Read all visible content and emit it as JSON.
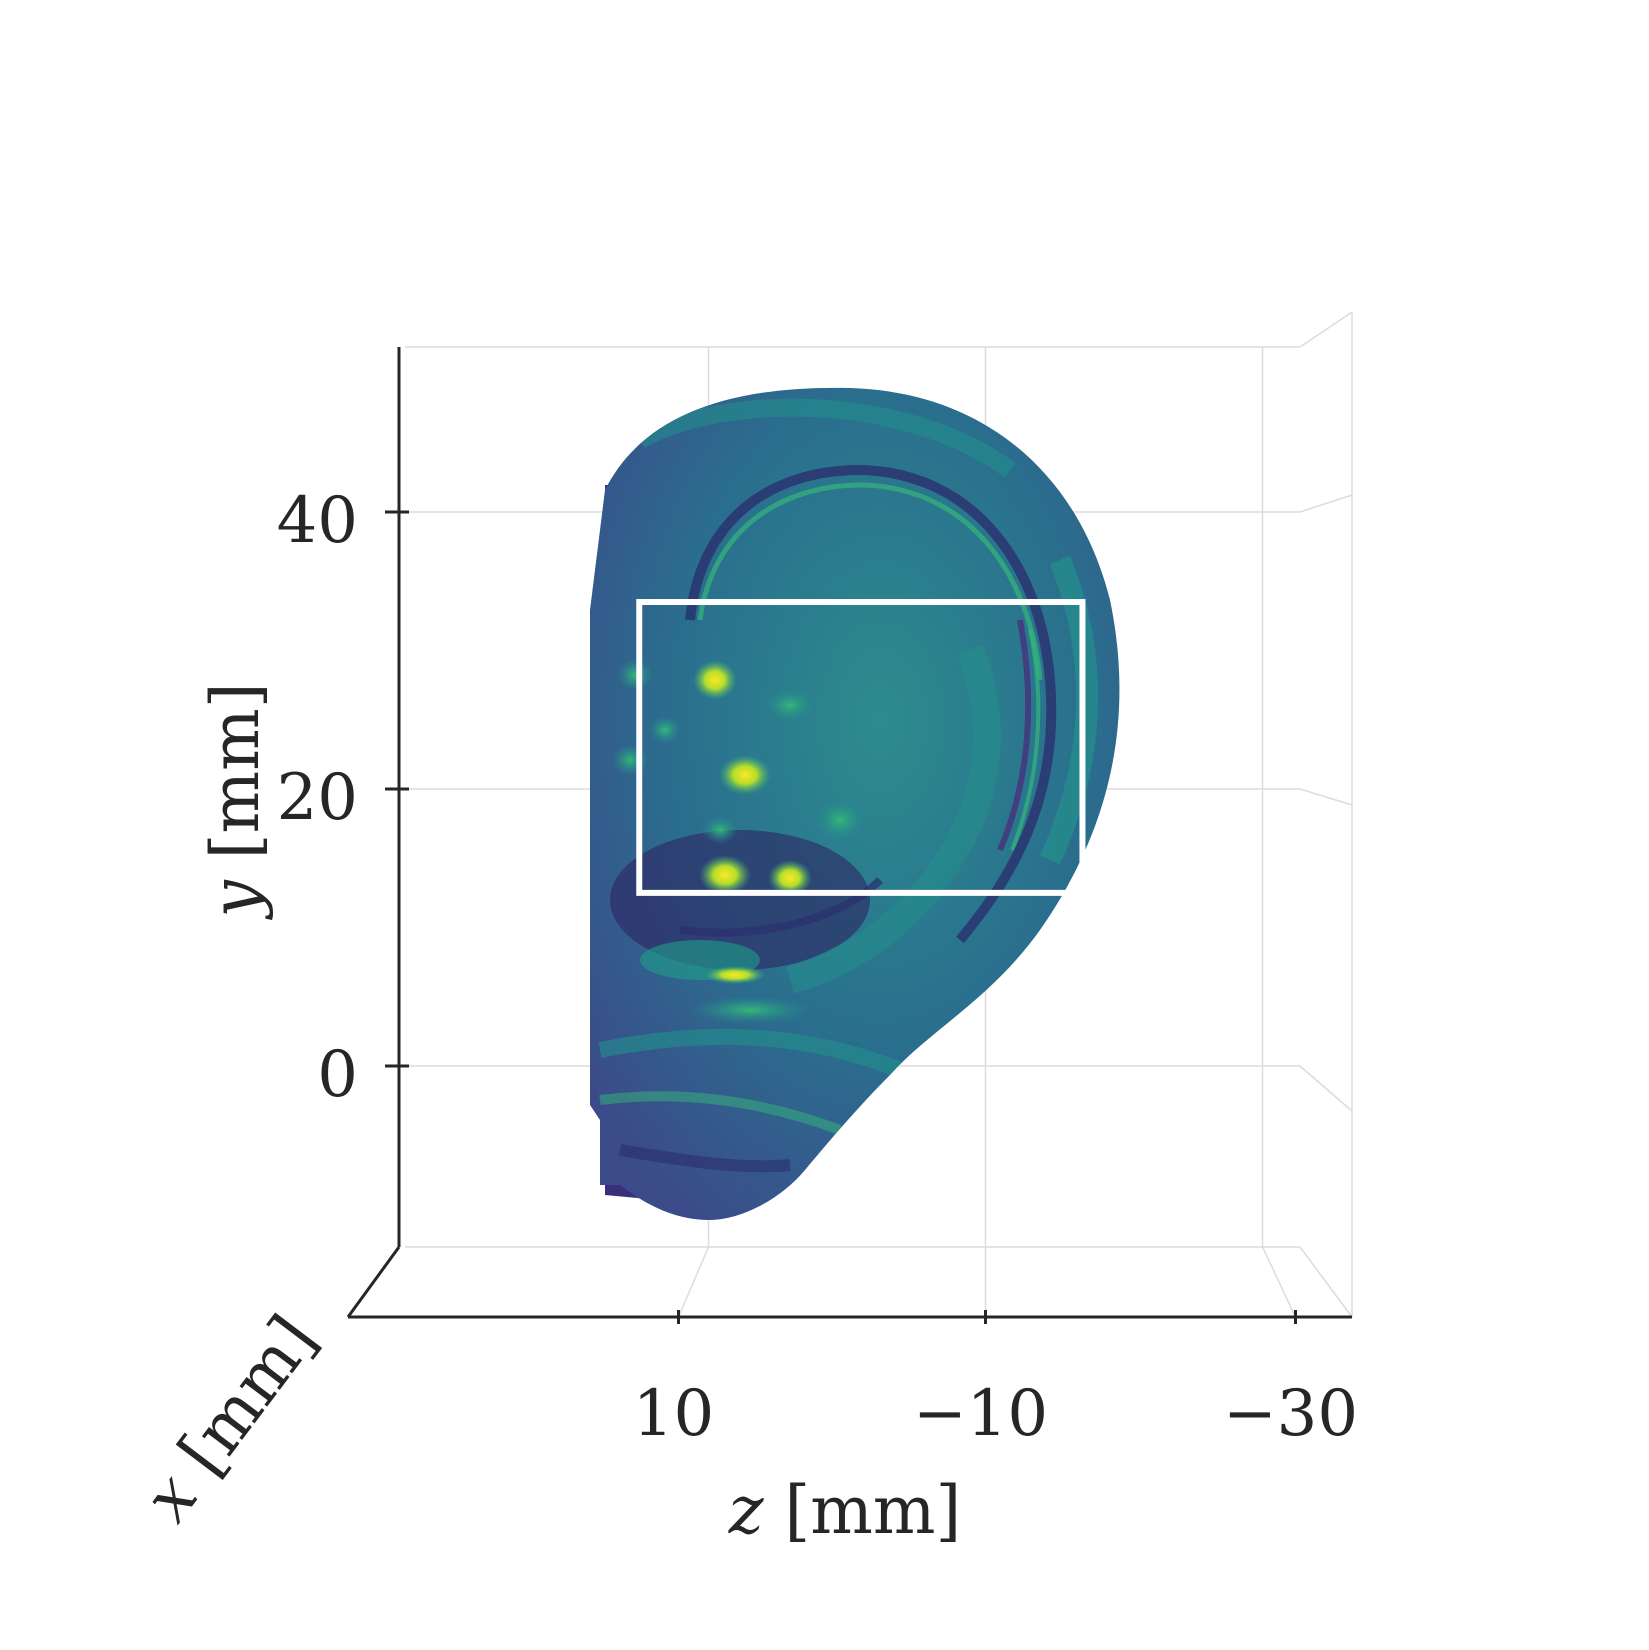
{
  "chart_data": {
    "type": "surface3d",
    "description_free": true,
    "xlabel": {
      "var": "x",
      "unit": "[mm]"
    },
    "ylabel": {
      "var": "y",
      "unit": "[mm]"
    },
    "zlabel": {
      "var": "z",
      "unit": "[mm]"
    },
    "y_ticks": [
      {
        "value": 40,
        "label": "40"
      },
      {
        "value": 20,
        "label": "20"
      },
      {
        "value": 0,
        "label": "0"
      }
    ],
    "z_ticks": [
      {
        "value": 10,
        "label": "10"
      },
      {
        "value": -10,
        "label": "−10"
      },
      {
        "value": -30,
        "label": "−30"
      }
    ],
    "ylim": [
      -13,
      52
    ],
    "zlim": [
      22,
      -44
    ],
    "highlight_box": {
      "z": [
        15,
        -17
      ],
      "y": [
        12.5,
        33.5
      ]
    },
    "colormap": "viridis"
  }
}
